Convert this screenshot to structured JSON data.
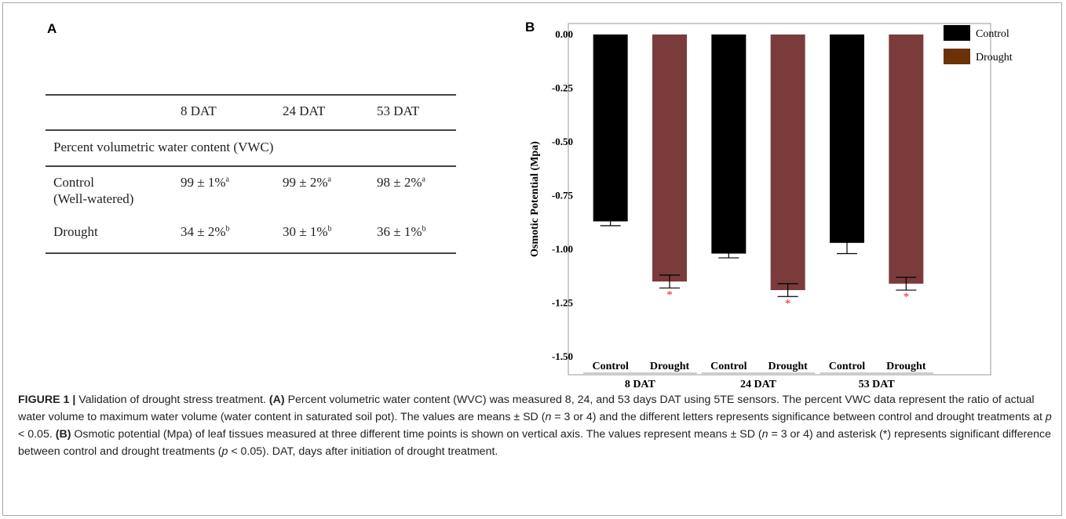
{
  "panel_a": {
    "letter": "A",
    "table": {
      "headers": [
        "8 DAT",
        "24 DAT",
        "53 DAT"
      ],
      "section_title": "Percent volumetric water content (VWC)",
      "rows": [
        {
          "label_line1": "Control",
          "label_line2": "(Well-watered)",
          "values": [
            "99 ± 1%",
            "99 ± 2%",
            "98 ± 2%"
          ],
          "sups": [
            "a",
            "a",
            "a"
          ]
        },
        {
          "label_line1": "Drought",
          "label_line2": "",
          "values": [
            "34 ± 2%",
            "30 ± 1%",
            "36 ± 1%"
          ],
          "sups": [
            "b",
            "b",
            "b"
          ]
        }
      ]
    }
  },
  "panel_b": {
    "letter": "B"
  },
  "chart_data": {
    "type": "bar",
    "ylabel": "Osmotic Potential (Mpa)",
    "ylim": [
      -1.5,
      0
    ],
    "yticks": [
      0,
      -0.25,
      -0.5,
      -0.75,
      -1.0,
      -1.25,
      -1.5
    ],
    "ytick_labels": [
      "0.00",
      "-0.25",
      "-0.50",
      "-0.75",
      "-1.00",
      "-1.25",
      "-1.50"
    ],
    "groups": [
      "8 DAT",
      "24 DAT",
      "53 DAT"
    ],
    "categories": [
      "Control",
      "Drought",
      "Control",
      "Drought",
      "Control",
      "Drought"
    ],
    "values": [
      -0.87,
      -1.15,
      -1.02,
      -1.19,
      -0.97,
      -1.16
    ],
    "errors": [
      0.02,
      0.03,
      0.02,
      0.03,
      0.05,
      0.03
    ],
    "significant": [
      false,
      true,
      false,
      true,
      false,
      true
    ],
    "significance_marker": "*",
    "colors": [
      "#000000",
      "#7b3b3b",
      "#000000",
      "#7b3b3b",
      "#000000",
      "#7b3b3b"
    ],
    "legend": [
      {
        "name": "Control",
        "color": "#000000"
      },
      {
        "name": "Drought",
        "color": "#6b3208"
      }
    ],
    "legend_position": "top-right",
    "grid": false
  },
  "caption": {
    "label": "FIGURE 1 |",
    "title": " Validation of drought stress treatment. ",
    "a_tag": "(A)",
    "a_text_1": " Percent volumetric water content (WVC) was measured 8, 24, and 53 days DAT using 5TE sensors. The percent VWC data represent the ratio of actual water volume to maximum water volume (water content in saturated soil pot). The values are means ± SD (",
    "n_letter": "n",
    "a_text_2": " = 3 or 4) and the different letters represents significance between control and drought treatments at ",
    "p_letter": "p",
    "a_text_3": " < 0.05. ",
    "b_tag": "(B)",
    "b_text_1": " Osmotic potential (Mpa) of leaf tissues measured at three different time points is shown on vertical axis. The values represent means ± SD (",
    "b_text_2": " = 3 or 4) and asterisk (*) represents significant difference between control and drought treatments (",
    "b_text_3": " < 0.05). DAT, days after initiation of drought treatment."
  }
}
